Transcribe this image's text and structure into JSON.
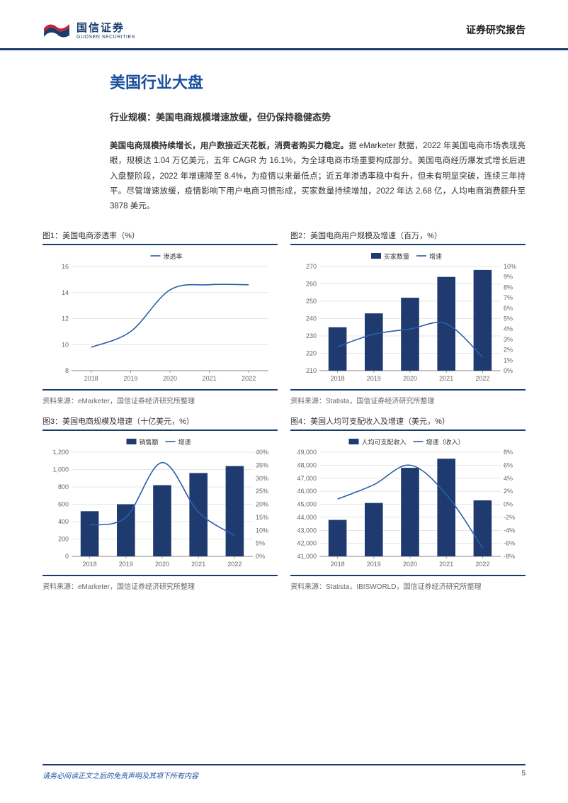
{
  "header": {
    "logo_cn": "国信证券",
    "logo_en": "GUOSEN SECURITIES",
    "report_type": "证券研究报告"
  },
  "main_title": "美国行业大盘",
  "sub_title": "行业规模：美国电商规模增速放缓，但仍保持稳健态势",
  "body": {
    "bold_lead": "美国电商规模持续增长，用户数接近天花板，消费者购买力稳定。",
    "rest": "据 eMarketer 数据，2022 年美国电商市场表现亮眼，规模达 1.04 万亿美元，五年 CAGR 为 16.1%，为全球电商市场重要构成部分。美国电商经历爆发式增长后进入盘整阶段，2022 年增速降至 8.4%，为疫情以来最低点；近五年渗透率稳中有升，但未有明显突破，连续三年持平。尽管增速放缓，疫情影响下用户电商习惯形成，买家数量持续增加，2022 年达 2.68 亿，人均电商消费额升至 3878 美元。"
  },
  "colors": {
    "brand_navy": "#1a3c6e",
    "brand_blue": "#1a4f9c",
    "bar_fill": "#1f3a6e",
    "line_stroke": "#2a5fa8",
    "grid": "#cfcfcf",
    "axis": "#888888",
    "tick_text": "#666666",
    "logo_red": "#c8202f"
  },
  "charts": [
    {
      "id": "chart1",
      "title": "图1：美国电商渗透率（%）",
      "source": "资料来源：eMarketer，国信证券经济研究所整理",
      "type": "line",
      "categories": [
        "2018",
        "2019",
        "2020",
        "2021",
        "2022"
      ],
      "y_left": {
        "min": 8,
        "max": 16,
        "step": 2
      },
      "legend": [
        {
          "label": "渗透率",
          "type": "line",
          "color": "#2a5fa8"
        }
      ],
      "series": [
        {
          "type": "line",
          "axis": "left",
          "color": "#2a5fa8",
          "values": [
            9.8,
            11.0,
            14.2,
            14.6,
            14.6
          ]
        }
      ],
      "tick_fontsize": 9,
      "legend_fontsize": 9
    },
    {
      "id": "chart2",
      "title": "图2：美国电商用户规模及增速（百万，%）",
      "source": "资料来源：Statista，国信证券经济研究所整理",
      "type": "bar_line",
      "categories": [
        "2018",
        "2019",
        "2020",
        "2021",
        "2022"
      ],
      "y_left": {
        "min": 210,
        "max": 270,
        "step": 10
      },
      "y_right": {
        "min": 0,
        "max": 10,
        "step": 1
      },
      "legend": [
        {
          "label": "买家数量",
          "type": "bar",
          "color": "#1f3a6e"
        },
        {
          "label": "增速",
          "type": "line",
          "color": "#2a5fa8"
        }
      ],
      "series": [
        {
          "type": "bar",
          "axis": "left",
          "color": "#1f3a6e",
          "values": [
            235,
            243,
            252,
            264,
            268
          ]
        },
        {
          "type": "line",
          "axis": "right",
          "color": "#2a5fa8",
          "values": [
            2.3,
            3.5,
            4.0,
            4.5,
            1.3
          ]
        }
      ],
      "bar_width": 0.5,
      "tick_fontsize": 9,
      "legend_fontsize": 9
    },
    {
      "id": "chart3",
      "title": "图3：美国电商规模及增速（十亿美元，%）",
      "source": "资料来源：eMarketer，国信证券经济研究所整理",
      "type": "bar_line",
      "categories": [
        "2018",
        "2019",
        "2020",
        "2021",
        "2022"
      ],
      "y_left": {
        "min": 0,
        "max": 1200,
        "step": 200
      },
      "y_right": {
        "min": 0,
        "max": 40,
        "step": 5
      },
      "legend": [
        {
          "label": "销售额",
          "type": "bar",
          "color": "#1f3a6e"
        },
        {
          "label": "增速",
          "type": "line",
          "color": "#2a5fa8"
        }
      ],
      "series": [
        {
          "type": "bar",
          "axis": "left",
          "color": "#1f3a6e",
          "values": [
            520,
            600,
            820,
            960,
            1040
          ]
        },
        {
          "type": "line",
          "axis": "right",
          "color": "#2a5fa8",
          "values": [
            12,
            15,
            36,
            17,
            8
          ]
        }
      ],
      "bar_width": 0.5,
      "tick_fontsize": 9,
      "legend_fontsize": 9
    },
    {
      "id": "chart4",
      "title": "图4：美国人均可支配收入及增速（美元，%）",
      "source": "资料来源：Statista，IBISWORLD，国信证券经济研究所整理",
      "type": "bar_line",
      "categories": [
        "2018",
        "2019",
        "2020",
        "2021",
        "2022"
      ],
      "y_left": {
        "min": 41000,
        "max": 49000,
        "step": 1000
      },
      "y_right": {
        "min": -8,
        "max": 8,
        "step": 2
      },
      "legend": [
        {
          "label": "人均可支配收入",
          "type": "bar",
          "color": "#1f3a6e"
        },
        {
          "label": "增速（收入）",
          "type": "line",
          "color": "#2a5fa8"
        }
      ],
      "series": [
        {
          "type": "bar",
          "axis": "left",
          "color": "#1f3a6e",
          "values": [
            43800,
            45100,
            47800,
            48500,
            45300
          ]
        },
        {
          "type": "line",
          "axis": "right",
          "color": "#2a5fa8",
          "values": [
            0.8,
            3.0,
            6.0,
            1.5,
            -6.7
          ]
        }
      ],
      "bar_width": 0.5,
      "tick_fontsize": 9,
      "legend_fontsize": 9
    }
  ],
  "footer": {
    "disclaimer": "请务必阅读正文之后的免责声明及其项下所有内容",
    "page": "5"
  }
}
